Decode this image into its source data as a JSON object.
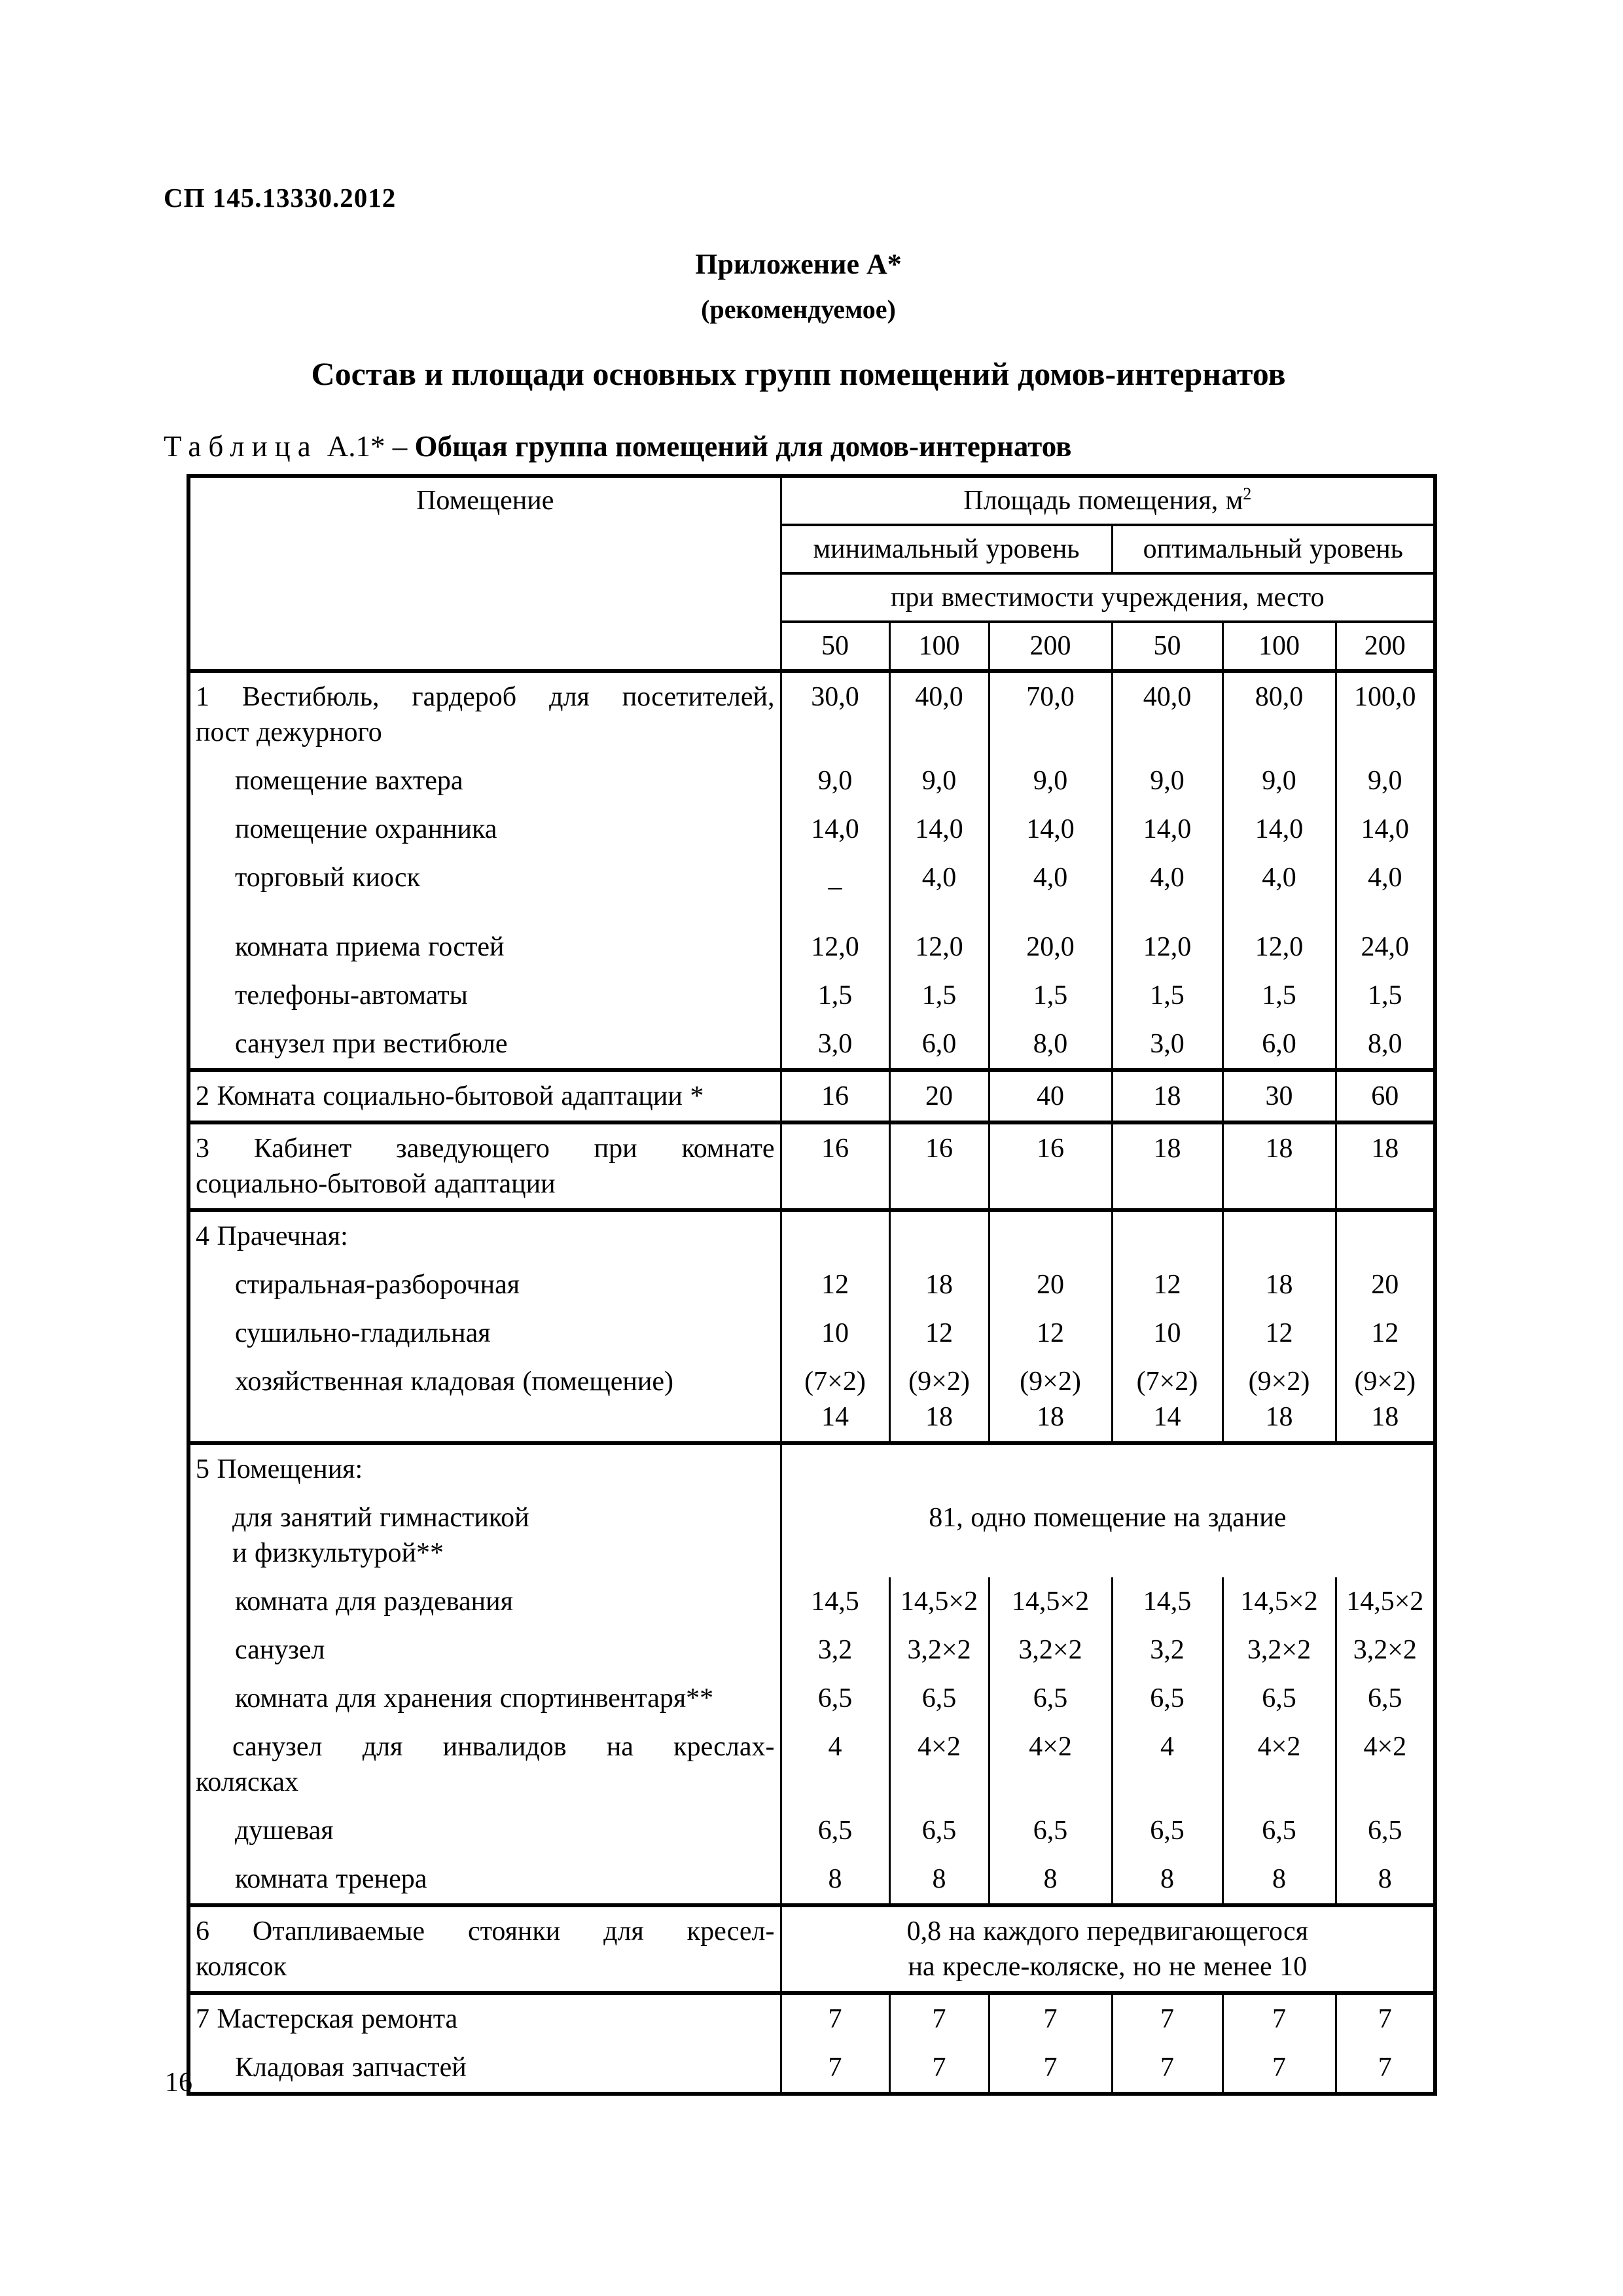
{
  "page": {
    "doc_code": "СП 145.13330.2012",
    "appendix_title": "Приложение А*",
    "appendix_subtitle": "(рекомендуемое)",
    "main_title": "Состав и площади основных групп помещений домов-интернатов",
    "table_caption_word": "Таблица",
    "table_caption_num": "А.1* –",
    "table_caption_title": "Общая группа помещений для домов-интернатов",
    "page_number": "16"
  },
  "table": {
    "header": {
      "room_col": "Помещение",
      "area_title": "Площадь помещения, м",
      "area_sup": "2",
      "min_level": "минимальный уровень",
      "opt_level": "оптимальный уровень",
      "capacity": "при вместимости учреждения, место",
      "capacities": [
        "50",
        "100",
        "200",
        "50",
        "100",
        "200"
      ]
    },
    "rows": [
      {
        "sect": true,
        "n": "row-vestibule",
        "cells": [
          {
            "c": "nm",
            "ls": [
              {
                "t": "1 Вестибюль, гардероб для посетителей,",
                "c": "jl"
              },
              {
                "t": "пост дежурного"
              }
            ]
          },
          {
            "c": "vc",
            "t": "30,0"
          },
          {
            "c": "vc",
            "t": "40,0"
          },
          {
            "c": "vc",
            "t": "70,0"
          },
          {
            "c": "vc",
            "t": "40,0"
          },
          {
            "c": "vc",
            "t": "80,0"
          },
          {
            "c": "vc",
            "t": "100,0"
          }
        ]
      },
      {
        "n": "row-porter-room",
        "cells": [
          {
            "c": "nm ind",
            "t": "помещение вахтера"
          },
          {
            "c": "vc",
            "t": "9,0"
          },
          {
            "c": "vc",
            "t": "9,0"
          },
          {
            "c": "vc",
            "t": "9,0"
          },
          {
            "c": "vc",
            "t": "9,0"
          },
          {
            "c": "vc",
            "t": "9,0"
          },
          {
            "c": "vc",
            "t": "9,0"
          }
        ]
      },
      {
        "n": "row-guard-room",
        "cells": [
          {
            "c": "nm ind",
            "t": "помещение охранника"
          },
          {
            "c": "vc",
            "t": "14,0"
          },
          {
            "c": "vc",
            "t": "14,0"
          },
          {
            "c": "vc",
            "t": "14,0"
          },
          {
            "c": "vc",
            "t": "14,0"
          },
          {
            "c": "vc",
            "t": "14,0"
          },
          {
            "c": "vc",
            "t": "14,0"
          }
        ]
      },
      {
        "tall": true,
        "n": "row-kiosk",
        "cells": [
          {
            "c": "nm ind",
            "t": "торговый киоск"
          },
          {
            "c": "vc",
            "ls": [
              {
                "t": "–",
                "c": "lo"
              }
            ]
          },
          {
            "c": "vc",
            "t": "4,0"
          },
          {
            "c": "vc",
            "t": "4,0"
          },
          {
            "c": "vc",
            "t": "4,0"
          },
          {
            "c": "vc",
            "t": "4,0"
          },
          {
            "c": "vc",
            "t": "4,0"
          }
        ]
      },
      {
        "n": "row-guest-room",
        "cells": [
          {
            "c": "nm ind",
            "t": "комната приема гостей"
          },
          {
            "c": "vc",
            "t": "12,0"
          },
          {
            "c": "vc",
            "t": "12,0"
          },
          {
            "c": "vc",
            "t": "20,0"
          },
          {
            "c": "vc",
            "t": "12,0"
          },
          {
            "c": "vc",
            "t": "12,0"
          },
          {
            "c": "vc",
            "t": "24,0"
          }
        ]
      },
      {
        "n": "row-payphones",
        "cells": [
          {
            "c": "nm ind",
            "t": "телефоны-автоматы"
          },
          {
            "c": "vc",
            "t": "1,5"
          },
          {
            "c": "vc",
            "t": "1,5"
          },
          {
            "c": "vc",
            "t": "1,5"
          },
          {
            "c": "vc",
            "t": "1,5"
          },
          {
            "c": "vc",
            "t": "1,5"
          },
          {
            "c": "vc",
            "t": "1,5"
          }
        ]
      },
      {
        "n": "row-lobby-wc",
        "cells": [
          {
            "c": "nm ind",
            "t": "санузел при вестибюле"
          },
          {
            "c": "vc",
            "t": "3,0"
          },
          {
            "c": "vc",
            "t": "6,0"
          },
          {
            "c": "vc",
            "t": "8,0"
          },
          {
            "c": "vc",
            "t": "3,0"
          },
          {
            "c": "vc",
            "t": "6,0"
          },
          {
            "c": "vc",
            "t": "8,0"
          }
        ]
      },
      {
        "sect": true,
        "n": "row-adaptation-room",
        "cells": [
          {
            "c": "nm",
            "t": "2 Комната социально-бытовой адаптации *"
          },
          {
            "c": "vc",
            "t": "16"
          },
          {
            "c": "vc",
            "t": "20"
          },
          {
            "c": "vc",
            "t": "40"
          },
          {
            "c": "vc",
            "t": "18"
          },
          {
            "c": "vc",
            "t": "30"
          },
          {
            "c": "vc",
            "t": "60"
          }
        ]
      },
      {
        "sect": true,
        "n": "row-manager-office",
        "cells": [
          {
            "c": "nm",
            "ls": [
              {
                "t": "3 Кабинет заведующего при комнате",
                "c": "jl"
              },
              {
                "t": "социально-бытовой адаптации"
              }
            ]
          },
          {
            "c": "vc",
            "t": "16"
          },
          {
            "c": "vc",
            "t": "16"
          },
          {
            "c": "vc",
            "t": "16"
          },
          {
            "c": "vc",
            "t": "18"
          },
          {
            "c": "vc",
            "t": "18"
          },
          {
            "c": "vc",
            "t": "18"
          }
        ]
      },
      {
        "sect": true,
        "n": "row-laundry",
        "cells": [
          {
            "c": "nm",
            "t": "4 Прачечная:"
          },
          {
            "c": "vc",
            "t": ""
          },
          {
            "c": "vc",
            "t": ""
          },
          {
            "c": "vc",
            "t": ""
          },
          {
            "c": "vc",
            "t": ""
          },
          {
            "c": "vc",
            "t": ""
          },
          {
            "c": "vc",
            "t": ""
          }
        ]
      },
      {
        "n": "row-washing",
        "cells": [
          {
            "c": "nm ind",
            "t": "стиральная-разборочная"
          },
          {
            "c": "vc",
            "t": "12"
          },
          {
            "c": "vc",
            "t": "18"
          },
          {
            "c": "vc",
            "t": "20"
          },
          {
            "c": "vc",
            "t": "12"
          },
          {
            "c": "vc",
            "t": "18"
          },
          {
            "c": "vc",
            "t": "20"
          }
        ]
      },
      {
        "n": "row-drying",
        "cells": [
          {
            "c": "nm ind",
            "t": "сушильно-гладильная"
          },
          {
            "c": "vc",
            "t": "10"
          },
          {
            "c": "vc",
            "t": "12"
          },
          {
            "c": "vc",
            "t": "12"
          },
          {
            "c": "vc",
            "t": "10"
          },
          {
            "c": "vc",
            "t": "12"
          },
          {
            "c": "vc",
            "t": "12"
          }
        ]
      },
      {
        "n": "row-storeroom",
        "cells": [
          {
            "c": "nm ind",
            "t": "хозяйственная кладовая (помещение)"
          },
          {
            "c": "vc",
            "ls": [
              {
                "t": "(7×2)"
              },
              {
                "t": "14"
              }
            ]
          },
          {
            "c": "vc",
            "ls": [
              {
                "t": "(9×2)"
              },
              {
                "t": "18"
              }
            ]
          },
          {
            "c": "vc",
            "ls": [
              {
                "t": "(9×2)"
              },
              {
                "t": "18"
              }
            ]
          },
          {
            "c": "vc",
            "ls": [
              {
                "t": "(7×2)"
              },
              {
                "t": "14"
              }
            ]
          },
          {
            "c": "vc",
            "ls": [
              {
                "t": "(9×2)"
              },
              {
                "t": "18"
              }
            ]
          },
          {
            "c": "vc",
            "ls": [
              {
                "t": "(9×2)"
              },
              {
                "t": "18"
              }
            ]
          }
        ]
      },
      {
        "sect": true,
        "n": "row-premises",
        "cells": [
          {
            "c": "nm",
            "t": "5 Помещения:"
          },
          {
            "c": "vc",
            "sp": 6,
            "t": ""
          }
        ]
      },
      {
        "n": "row-gym",
        "cells": [
          {
            "c": "nm",
            "ls": [
              {
                "t": "для занятий гимнастикой",
                "c": "ind"
              },
              {
                "t": "и физкультурой**",
                "c": "ind"
              }
            ]
          },
          {
            "c": "vc",
            "sp": 6,
            "t": "81, одно помещение на здание"
          }
        ]
      },
      {
        "n": "row-changing-room",
        "cells": [
          {
            "c": "nm ind",
            "t": "комната для раздевания"
          },
          {
            "c": "vc",
            "t": "14,5"
          },
          {
            "c": "vc",
            "t": "14,5×2"
          },
          {
            "c": "vc",
            "t": "14,5×2"
          },
          {
            "c": "vc",
            "t": "14,5"
          },
          {
            "c": "vc",
            "t": "14,5×2"
          },
          {
            "c": "vc",
            "t": "14,5×2"
          }
        ]
      },
      {
        "n": "row-gym-wc",
        "cells": [
          {
            "c": "nm ind",
            "t": "санузел"
          },
          {
            "c": "vc",
            "t": "3,2"
          },
          {
            "c": "vc",
            "t": "3,2×2"
          },
          {
            "c": "vc",
            "t": "3,2×2"
          },
          {
            "c": "vc",
            "t": "3,2"
          },
          {
            "c": "vc",
            "t": "3,2×2"
          },
          {
            "c": "vc",
            "t": "3,2×2"
          }
        ]
      },
      {
        "n": "row-sports-storage",
        "cells": [
          {
            "c": "nm ind",
            "t": "комната для хранения спортинвентаря**"
          },
          {
            "c": "vc",
            "t": "6,5"
          },
          {
            "c": "vc",
            "t": "6,5"
          },
          {
            "c": "vc",
            "t": "6,5"
          },
          {
            "c": "vc",
            "t": "6,5"
          },
          {
            "c": "vc",
            "t": "6,5"
          },
          {
            "c": "vc",
            "t": "6,5"
          }
        ]
      },
      {
        "n": "row-wheelchair-wc",
        "cells": [
          {
            "c": "nm",
            "ls": [
              {
                "t": "санузел для инвалидов на креслах-",
                "c": "ind jl"
              },
              {
                "t": "колясках"
              }
            ]
          },
          {
            "c": "vc",
            "t": "4"
          },
          {
            "c": "vc",
            "t": "4×2"
          },
          {
            "c": "vc",
            "t": "4×2"
          },
          {
            "c": "vc",
            "t": "4"
          },
          {
            "c": "vc",
            "t": "4×2"
          },
          {
            "c": "vc",
            "t": "4×2"
          }
        ]
      },
      {
        "n": "row-shower",
        "cells": [
          {
            "c": "nm ind",
            "t": "душевая"
          },
          {
            "c": "vc",
            "t": "6,5"
          },
          {
            "c": "vc",
            "t": "6,5"
          },
          {
            "c": "vc",
            "t": "6,5"
          },
          {
            "c": "vc",
            "t": "6,5"
          },
          {
            "c": "vc",
            "t": "6,5"
          },
          {
            "c": "vc",
            "t": "6,5"
          }
        ]
      },
      {
        "n": "row-coach-room",
        "cells": [
          {
            "c": "nm ind",
            "t": "комната тренера"
          },
          {
            "c": "vc",
            "t": "8"
          },
          {
            "c": "vc",
            "t": "8"
          },
          {
            "c": "vc",
            "t": "8"
          },
          {
            "c": "vc",
            "t": "8"
          },
          {
            "c": "vc",
            "t": "8"
          },
          {
            "c": "vc",
            "t": "8"
          }
        ]
      },
      {
        "sect": true,
        "n": "row-heated-parking",
        "cells": [
          {
            "c": "nm",
            "ls": [
              {
                "t": "6 Отапливаемые стоянки для кресел-",
                "c": "jl"
              },
              {
                "t": "колясок"
              }
            ]
          },
          {
            "c": "vc",
            "sp": 6,
            "ls": [
              {
                "t": "0,8 на каждого передвигающегося"
              },
              {
                "t": "на кресле-коляске, но не менее 10"
              }
            ]
          }
        ]
      },
      {
        "sect": true,
        "n": "row-repair-shop",
        "cells": [
          {
            "c": "nm",
            "t": "7 Мастерская ремонта"
          },
          {
            "c": "vc",
            "t": "7"
          },
          {
            "c": "vc",
            "t": "7"
          },
          {
            "c": "vc",
            "t": "7"
          },
          {
            "c": "vc",
            "t": "7"
          },
          {
            "c": "vc",
            "t": "7"
          },
          {
            "c": "vc",
            "t": "7"
          }
        ]
      },
      {
        "n": "row-spare-parts",
        "cells": [
          {
            "c": "nm ind",
            "t": "Кладовая запчастей"
          },
          {
            "c": "vc",
            "t": "7"
          },
          {
            "c": "vc",
            "t": "7"
          },
          {
            "c": "vc",
            "t": "7"
          },
          {
            "c": "vc",
            "t": "7"
          },
          {
            "c": "vc",
            "t": "7"
          },
          {
            "c": "vc",
            "t": "7"
          }
        ]
      }
    ]
  }
}
